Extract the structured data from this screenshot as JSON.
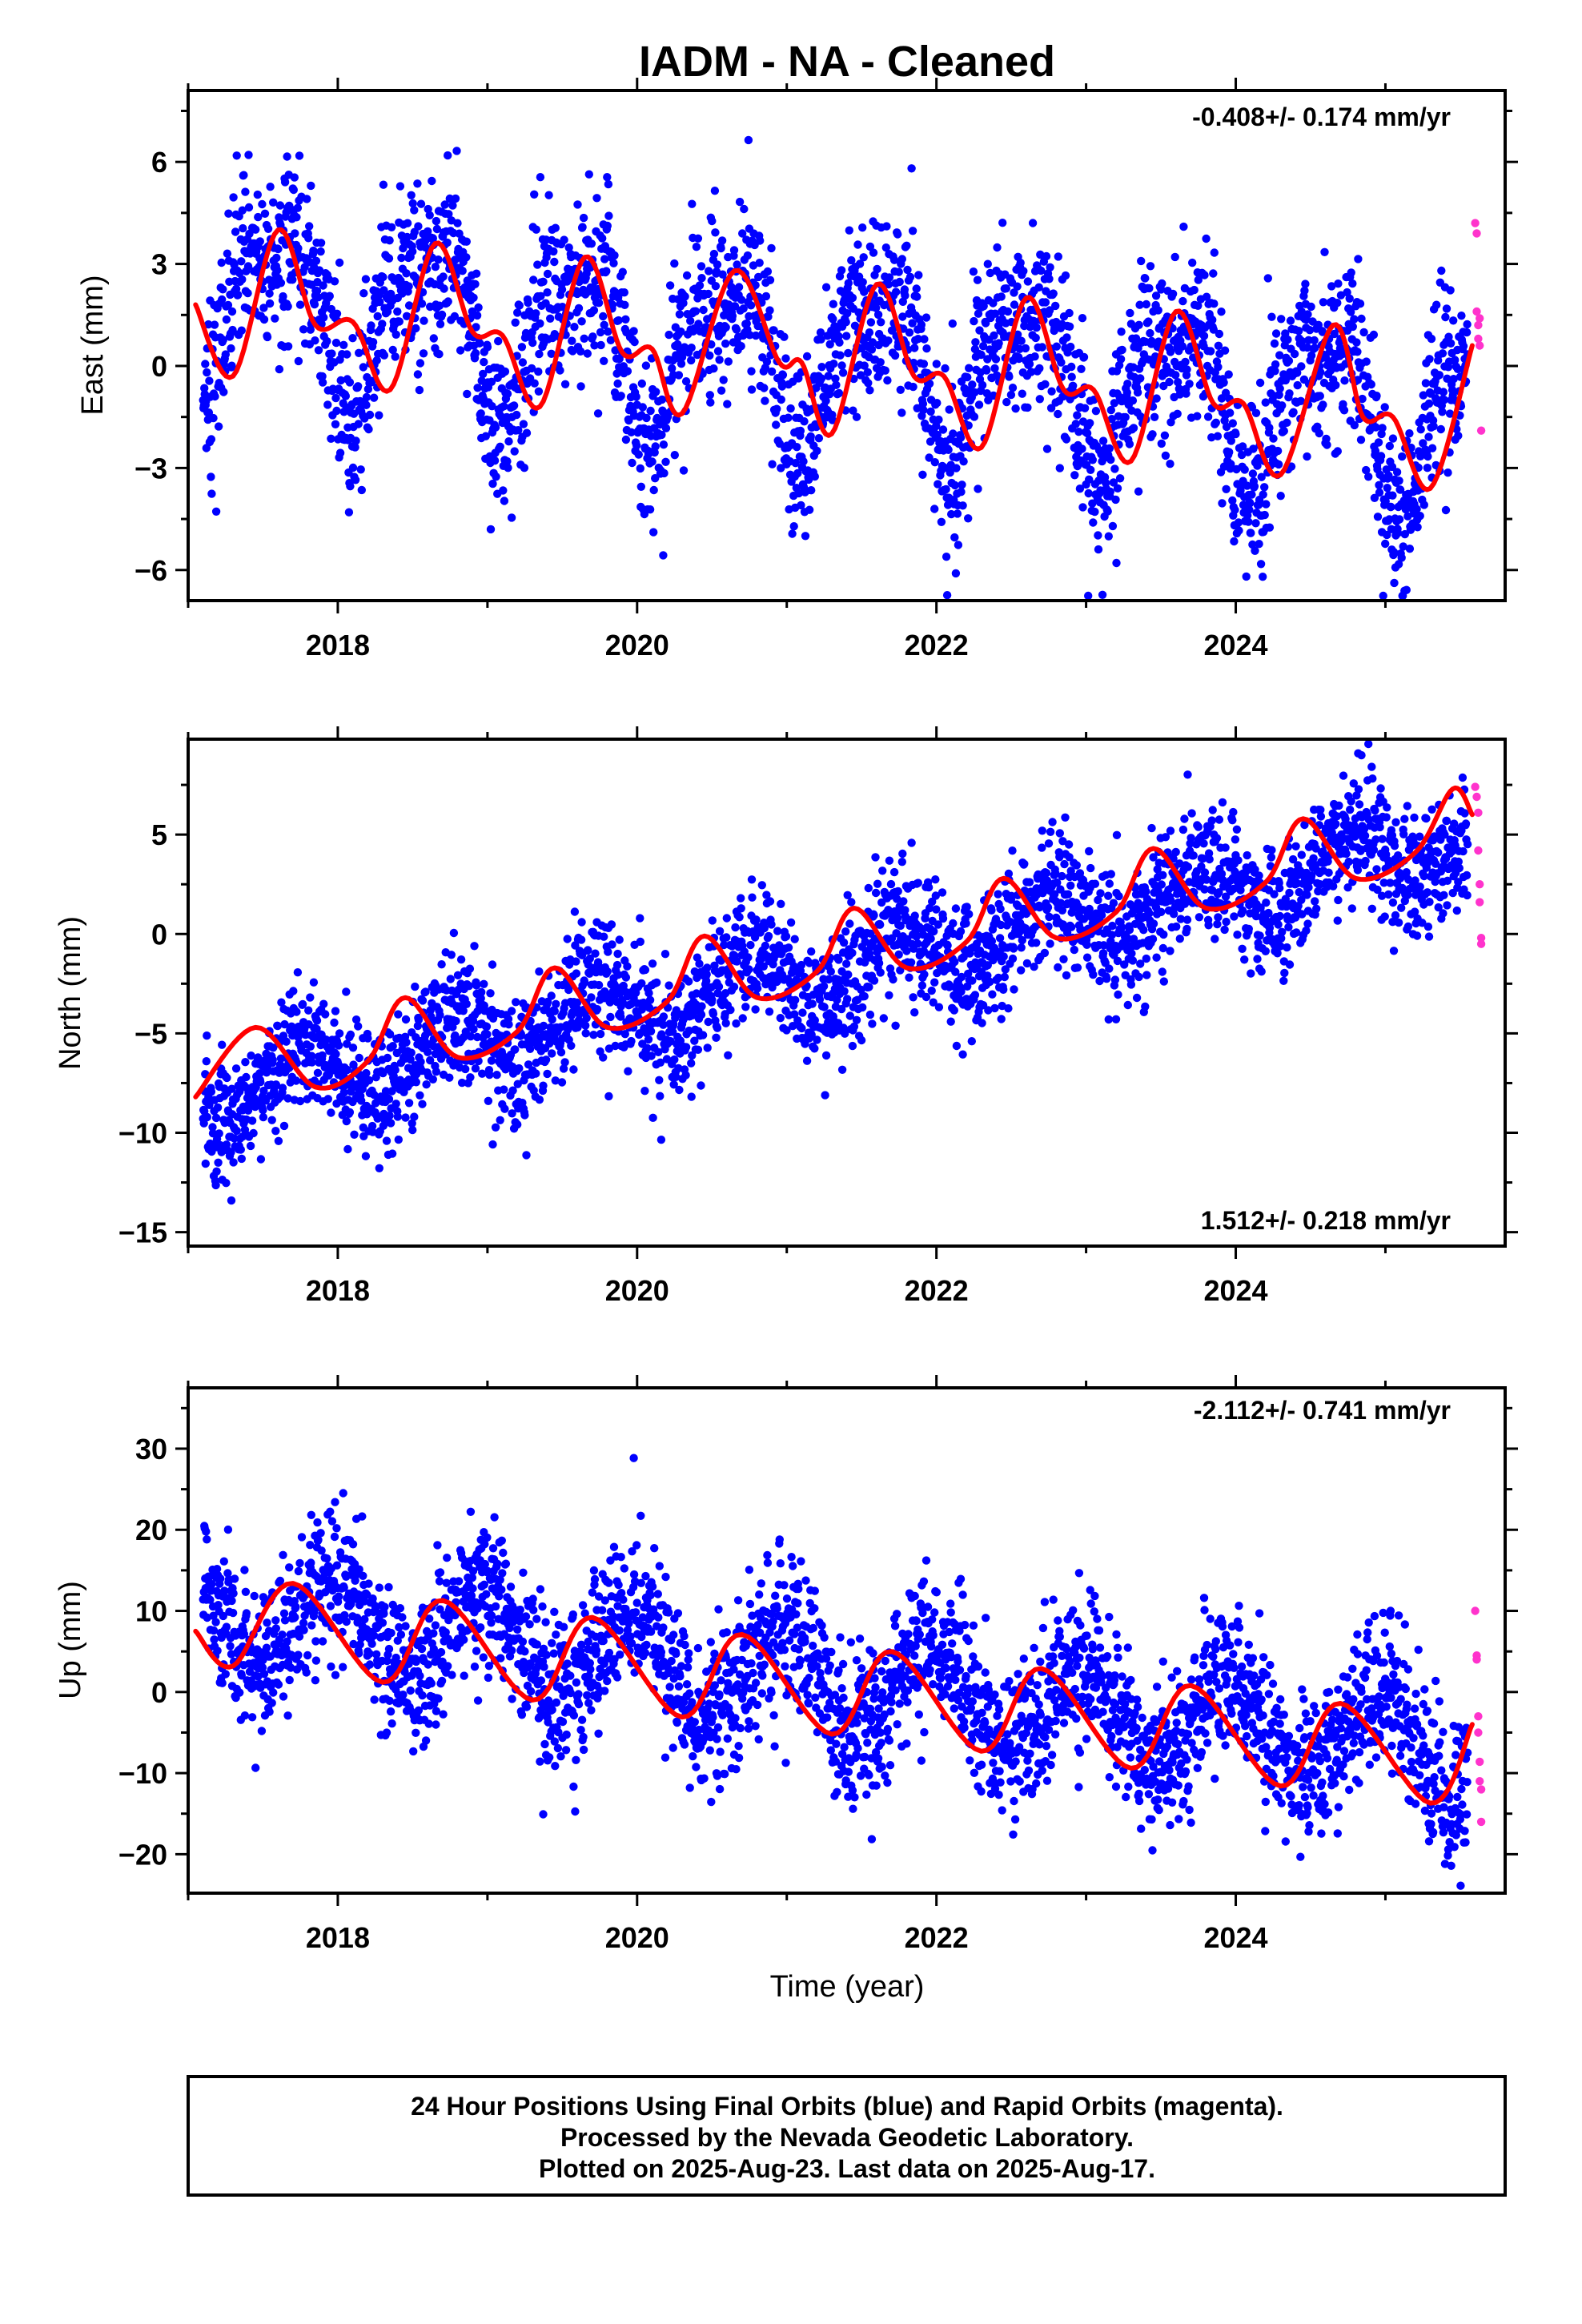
{
  "title": "IADM  - NA - Cleaned",
  "xlabel": "Time (year)",
  "footer": [
    "24 Hour Positions Using Final Orbits (blue) and Rapid Orbits (magenta).",
    "Processed by the Nevada Geodetic Laboratory.",
    "Plotted on 2025-Aug-23. Last data on 2025-Aug-17."
  ],
  "colors": {
    "final": "#0000ff",
    "rapid": "#ff33cc",
    "fit": "#ff0000",
    "frame": "#000000"
  },
  "chart_data": [
    {
      "type": "scatter",
      "component": "east",
      "ylabel": "East (mm)",
      "rate_label": "-0.408+/- 0.174 mm/yr",
      "rate_position": "top-right",
      "xlim": [
        2017.0,
        2025.8
      ],
      "ylim": [
        -6.9,
        8.1
      ],
      "xticks": [
        2018,
        2020,
        2022,
        2024
      ],
      "yticks": [
        6,
        3,
        0,
        -3,
        -6
      ],
      "yminor": 1.5,
      "grid": false,
      "model": {
        "trend": -0.408,
        "offset": 0.2,
        "annual_amp": 2.1,
        "annual_phase": 0.35,
        "semi_amp": 0.9,
        "semi_phase": 1.2
      },
      "final_orbits": {
        "start": 2017.1,
        "end": 2025.55,
        "noise": 1.3
      },
      "rapid_orbits": {
        "x": [
          2025.6,
          2025.61,
          2025.61,
          2025.62,
          2025.62,
          2025.63,
          2025.63,
          2025.64
        ],
        "y": [
          4.2,
          3.9,
          1.6,
          1.2,
          0.8,
          0.6,
          1.4,
          -1.9
        ]
      },
      "fit": {
        "x": [
          2017.05,
          2017.3,
          2017.6,
          2017.85,
          2018.1,
          2018.35,
          2018.65,
          2018.9,
          2019.1,
          2019.35,
          2019.65,
          2019.9,
          2020.1,
          2020.3,
          2020.65,
          2020.95,
          2021.1,
          2021.3,
          2021.6,
          2021.85,
          2022.05,
          2022.3,
          2022.6,
          2022.85,
          2023.05,
          2023.3,
          2023.6,
          2023.85,
          2024.05,
          2024.3,
          2024.65,
          2024.85,
          2025.05,
          2025.3,
          2025.58
        ],
        "y": [
          1.8,
          -0.3,
          4.0,
          1.2,
          1.3,
          -0.7,
          3.6,
          1.0,
          0.9,
          -1.2,
          3.2,
          0.4,
          0.5,
          -1.4,
          2.8,
          0.1,
          0.1,
          -2.0,
          2.4,
          -0.3,
          -0.3,
          -2.4,
          2.0,
          -0.7,
          -0.7,
          -2.8,
          1.6,
          -1.1,
          -1.1,
          -3.2,
          1.2,
          -1.5,
          -1.5,
          -3.6,
          0.6
        ]
      }
    },
    {
      "type": "scatter",
      "component": "north",
      "ylabel": "North (mm)",
      "rate_label": "1.512+/- 0.218 mm/yr",
      "rate_position": "bottom-right",
      "xlim": [
        2017.0,
        2025.8
      ],
      "ylim": [
        -15.7,
        9.8
      ],
      "xticks": [
        2018,
        2020,
        2022,
        2024
      ],
      "yticks": [
        5,
        0,
        -5,
        -10,
        -15
      ],
      "yminor": 2.5,
      "grid": false,
      "model": {
        "trend": 1.512,
        "offset": -1.6,
        "annual_amp": 1.6,
        "annual_phase": 0.5,
        "semi_amp": 0.0,
        "semi_phase": 0.0
      },
      "final_orbits": {
        "start": 2017.1,
        "end": 2025.55,
        "noise": 1.6
      },
      "rapid_orbits": {
        "x": [
          2025.6,
          2025.61,
          2025.62,
          2025.62,
          2025.63,
          2025.63,
          2025.64,
          2025.64
        ],
        "y": [
          7.4,
          6.9,
          6.1,
          4.2,
          2.5,
          1.6,
          -0.2,
          -0.5
        ]
      },
      "fit": {
        "x": [
          2017.05,
          2017.45,
          2017.85,
          2018.2,
          2018.45,
          2018.8,
          2019.2,
          2019.45,
          2019.8,
          2020.2,
          2020.45,
          2020.8,
          2021.2,
          2021.45,
          2021.8,
          2022.2,
          2022.45,
          2022.8,
          2023.2,
          2023.45,
          2023.8,
          2024.2,
          2024.45,
          2024.8,
          2025.2,
          2025.45,
          2025.58
        ],
        "y": [
          -8.2,
          -4.7,
          -7.7,
          -6.4,
          -3.2,
          -6.2,
          -4.9,
          -1.7,
          -4.7,
          -3.4,
          -0.1,
          -3.2,
          -1.9,
          1.3,
          -1.7,
          -0.4,
          2.8,
          -0.2,
          1.1,
          4.3,
          1.3,
          2.6,
          5.8,
          2.8,
          4.1,
          7.3,
          6.0
        ]
      }
    },
    {
      "type": "scatter",
      "component": "up",
      "ylabel": "Up (mm)",
      "rate_label": "-2.112+/- 0.741 mm/yr",
      "rate_position": "top-right",
      "xlim": [
        2017.0,
        2025.8
      ],
      "ylim": [
        -24.8,
        37.5
      ],
      "xticks": [
        2018,
        2020,
        2022,
        2024
      ],
      "yticks": [
        30,
        20,
        10,
        0,
        -10,
        -20
      ],
      "yminor": 5,
      "grid": false,
      "model": {
        "trend": -2.112,
        "offset": 1.2,
        "annual_amp": 5.8,
        "annual_phase": 0.72,
        "semi_amp": 0.0,
        "semi_phase": 0.0
      },
      "final_orbits": {
        "start": 2017.1,
        "end": 2025.55,
        "noise": 4.6
      },
      "rapid_orbits": {
        "x": [
          2025.6,
          2025.61,
          2025.61,
          2025.62,
          2025.62,
          2025.63,
          2025.63,
          2025.64,
          2025.64
        ],
        "y": [
          10.0,
          4.5,
          4.0,
          -3.0,
          -5.0,
          -8.6,
          -11.0,
          -12.0,
          -16.0
        ]
      },
      "fit": {
        "x": [
          2017.05,
          2017.3,
          2017.7,
          2018.3,
          2018.7,
          2019.3,
          2019.7,
          2020.3,
          2020.7,
          2021.3,
          2021.7,
          2022.3,
          2022.7,
          2023.3,
          2023.7,
          2024.3,
          2024.7,
          2025.3,
          2025.58
        ],
        "y": [
          7.5,
          3.2,
          13.4,
          1.2,
          11.3,
          -1.0,
          9.2,
          -3.1,
          7.1,
          -5.2,
          5.0,
          -7.3,
          2.9,
          -9.4,
          0.8,
          -11.6,
          -1.4,
          -13.7,
          -4.0
        ]
      }
    }
  ]
}
